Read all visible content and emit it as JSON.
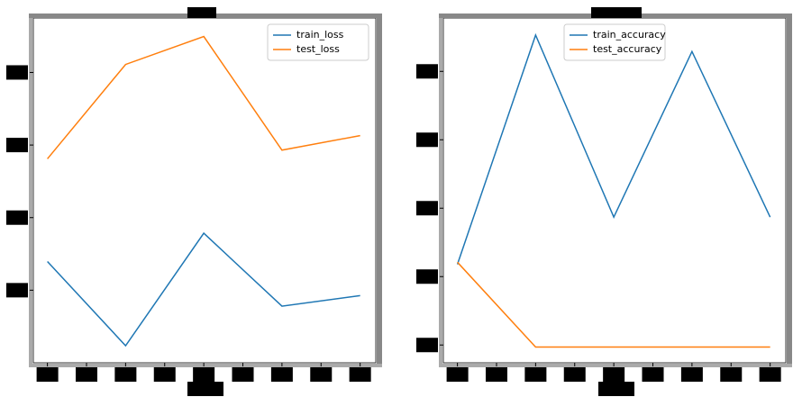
{
  "chart_data": [
    {
      "type": "line",
      "x": [
        0,
        1,
        2,
        3,
        4
      ],
      "series": [
        {
          "name": "train_loss",
          "color": "#1f77b4",
          "values": [
            0.479,
            0.247,
            0.557,
            0.356,
            0.385
          ]
        },
        {
          "name": "test_loss",
          "color": "#ff7f0e",
          "values": [
            0.762,
            1.022,
            1.099,
            0.786,
            0.826
          ]
        }
      ],
      "xlim": [
        -0.18,
        4.2
      ],
      "xticks": [
        0,
        0.5,
        1,
        1.5,
        2,
        2.5,
        3,
        3.5,
        4
      ],
      "ylim": [
        0.2,
        1.15
      ],
      "yticks": [
        0.4,
        0.6,
        0.8,
        1.0
      ],
      "legend": "upper right"
    },
    {
      "type": "line",
      "x": [
        0,
        1,
        2,
        3,
        4
      ],
      "series": [
        {
          "name": "train_accuracy",
          "color": "#1f77b4",
          "values": [
            0.218,
            0.553,
            0.287,
            0.529,
            0.287
          ]
        },
        {
          "name": "test_accuracy",
          "color": "#ff7f0e",
          "values": [
            0.221,
            0.097,
            0.097,
            0.097,
            0.097
          ]
        }
      ],
      "xlim": [
        -0.18,
        4.2
      ],
      "xticks": [
        0,
        0.5,
        1,
        1.5,
        2,
        2.5,
        3,
        3.5,
        4
      ],
      "ylim": [
        0.074,
        0.578
      ],
      "yticks": [
        0.1,
        0.2,
        0.3,
        0.4,
        0.5
      ],
      "legend": "upper center"
    }
  ]
}
